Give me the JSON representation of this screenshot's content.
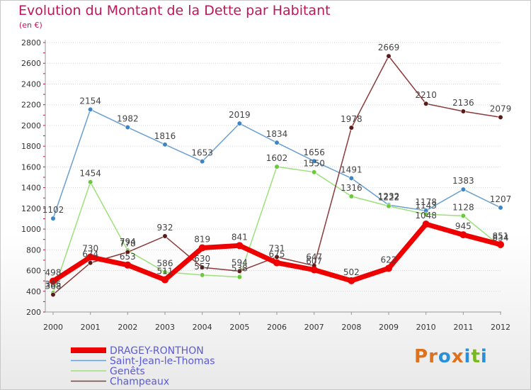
{
  "title": "Evolution du Montant de la Dette par Habitant",
  "subtitle": "(en €)",
  "logo": {
    "text": "Proxiti",
    "letters": [
      "P",
      "r",
      "o",
      "x",
      "i",
      "t",
      "i"
    ],
    "colors": [
      "#e0701a",
      "#e0701a",
      "#2a8fd6",
      "#e0701a",
      "#2a8fd6",
      "#7ab820",
      "#2a8fd6"
    ]
  },
  "chart_data": {
    "type": "line",
    "title": "Evolution du Montant de la Dette par Habitant",
    "subtitle": "(en €)",
    "xlabel": "",
    "ylabel": "",
    "x": [
      "2000",
      "2001",
      "2002",
      "2003",
      "2004",
      "2005",
      "2006",
      "2007",
      "2008",
      "2009",
      "2010",
      "2011",
      "2012"
    ],
    "ylim": [
      200,
      2800
    ],
    "yticks": [
      "200",
      "400",
      "600",
      "800",
      "1000",
      "1200",
      "1400",
      "1600",
      "1800",
      "2000",
      "2200",
      "2400",
      "2600",
      "2800"
    ],
    "grid": "horizontal",
    "legend_position": "bottom-left",
    "series": [
      {
        "name": "Saint-Jean-le-Thomas",
        "color": "#6a9fd0",
        "marker": "#3d85c6",
        "width": 1.5,
        "values": [
          1102,
          2154,
          1982,
          1816,
          1653,
          2019,
          1834,
          1656,
          1491,
          1232,
          1178,
          1383,
          1207
        ],
        "labels": [
          "1102",
          "2154",
          "1982",
          "1816",
          "1653",
          "2019",
          "1834",
          "1656",
          "1491",
          "1232",
          "1178",
          "1383",
          "1207"
        ]
      },
      {
        "name": "Genêts",
        "color": "#9ce07a",
        "marker": "#6cc83c",
        "width": 1.5,
        "values": [
          385,
          1454,
          794,
          586,
          557,
          538,
          1602,
          1550,
          1316,
          1222,
          1143,
          1128,
          834
        ],
        "labels": [
          "385",
          "1454",
          "794",
          "586",
          "557",
          "538",
          "1602",
          "1550",
          "1316",
          "1222",
          "1143",
          "1128",
          "834"
        ]
      },
      {
        "name": "Champeaux",
        "color": "#8b3a3a",
        "marker": "#5a1a1a",
        "width": 1.5,
        "values": [
          368,
          674,
          778,
          932,
          630,
          594,
          731,
          647,
          1978,
          2669,
          2210,
          2136,
          2079
        ],
        "labels": [
          "368",
          "674",
          "778",
          "932",
          "630",
          "594",
          "731",
          "647",
          "1978",
          "2669",
          "2210",
          "2136",
          "2079"
        ]
      },
      {
        "name": "DRAGEY-RONTHON",
        "color": "#ee0000",
        "marker": "#ee0000",
        "width": 7,
        "values": [
          498,
          730,
          653,
          511,
          819,
          841,
          675,
          607,
          502,
          622,
          1048,
          945,
          851
        ],
        "labels": [
          "498",
          "730",
          "653",
          "511",
          "819",
          "841",
          "675",
          "607",
          "502",
          "622",
          "1048",
          "945",
          "851"
        ]
      }
    ],
    "legend": [
      {
        "name": "DRAGEY-RONTHON",
        "color": "#ee0000",
        "text_color": "#5a5ad6"
      },
      {
        "name": "Saint-Jean-le-Thomas",
        "color": "#6a9fd0",
        "text_color": "#5a5ad6"
      },
      {
        "name": "Genêts",
        "color": "#9ce07a",
        "text_color": "#5a5ad6"
      },
      {
        "name": "Champeaux",
        "color": "#8b3a3a",
        "text_color": "#5a5ad6"
      }
    ]
  }
}
